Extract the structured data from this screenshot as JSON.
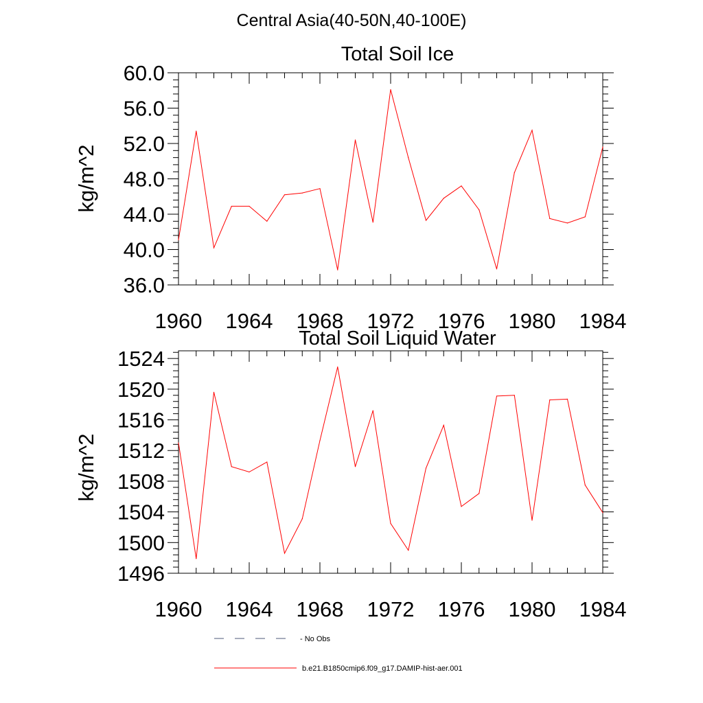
{
  "figure": {
    "title": "Central Asia(40-50N,40-100E)"
  },
  "colors": {
    "series": "#ff0000",
    "no_obs": "#4d5a7a",
    "axis": "#000000"
  },
  "legend": {
    "placement": "bottom",
    "items": [
      {
        "label": "No Obs",
        "style": "dashed"
      },
      {
        "label": "b.e21.B1850cmip6.f09_g17.DAMIP-hist-aer.001",
        "style": "solid"
      }
    ]
  },
  "chart_data": [
    {
      "type": "line",
      "title": "Total Soil Ice",
      "xlabel": "",
      "ylabel": "kg/m^2",
      "xlim": [
        1960,
        1984
      ],
      "ylim": [
        36,
        60
      ],
      "xticks": [
        "1960",
        "1964",
        "1968",
        "1972",
        "1976",
        "1980",
        "1984"
      ],
      "yticks": [
        "36.0",
        "40.0",
        "44.0",
        "48.0",
        "52.0",
        "56.0",
        "60.0"
      ],
      "grid": false,
      "x": [
        1960,
        1961,
        1962,
        1963,
        1964,
        1965,
        1966,
        1967,
        1968,
        1969,
        1970,
        1971,
        1972,
        1973,
        1974,
        1975,
        1976,
        1977,
        1978,
        1979,
        1980,
        1981,
        1982,
        1983,
        1984
      ],
      "series": [
        {
          "name": "b.e21.B1850cmip6.f09_g17.DAMIP-hist-aer.001",
          "values": [
            41.1,
            53.4,
            40.2,
            44.9,
            44.9,
            43.2,
            46.2,
            46.4,
            46.9,
            37.7,
            52.4,
            43.1,
            58.1,
            50.4,
            43.3,
            45.8,
            47.2,
            44.5,
            37.8,
            48.7,
            53.5,
            43.5,
            43.0,
            43.7,
            51.6
          ]
        }
      ]
    },
    {
      "type": "line",
      "title": "Total Soil Liquid Water",
      "xlabel": "",
      "ylabel": "kg/m^2",
      "xlim": [
        1960,
        1984
      ],
      "ylim": [
        1496,
        1525
      ],
      "xticks": [
        "1960",
        "1964",
        "1968",
        "1972",
        "1976",
        "1980",
        "1984"
      ],
      "yticks": [
        "1496",
        "1500",
        "1504",
        "1508",
        "1512",
        "1516",
        "1520",
        "1524"
      ],
      "grid": false,
      "x": [
        1960,
        1961,
        1962,
        1963,
        1964,
        1965,
        1966,
        1967,
        1968,
        1969,
        1970,
        1971,
        1972,
        1973,
        1974,
        1975,
        1976,
        1977,
        1978,
        1979,
        1980,
        1981,
        1982,
        1983,
        1984
      ],
      "series": [
        {
          "name": "b.e21.B1850cmip6.f09_g17.DAMIP-hist-aer.001",
          "values": [
            1513.0,
            1497.9,
            1519.6,
            1509.9,
            1509.2,
            1510.5,
            1498.6,
            1503.1,
            1513.3,
            1522.9,
            1509.9,
            1517.2,
            1502.5,
            1499.0,
            1509.7,
            1515.3,
            1504.7,
            1506.4,
            1519.1,
            1519.2,
            1502.9,
            1518.6,
            1518.7,
            1507.5,
            1503.9
          ]
        }
      ]
    }
  ]
}
